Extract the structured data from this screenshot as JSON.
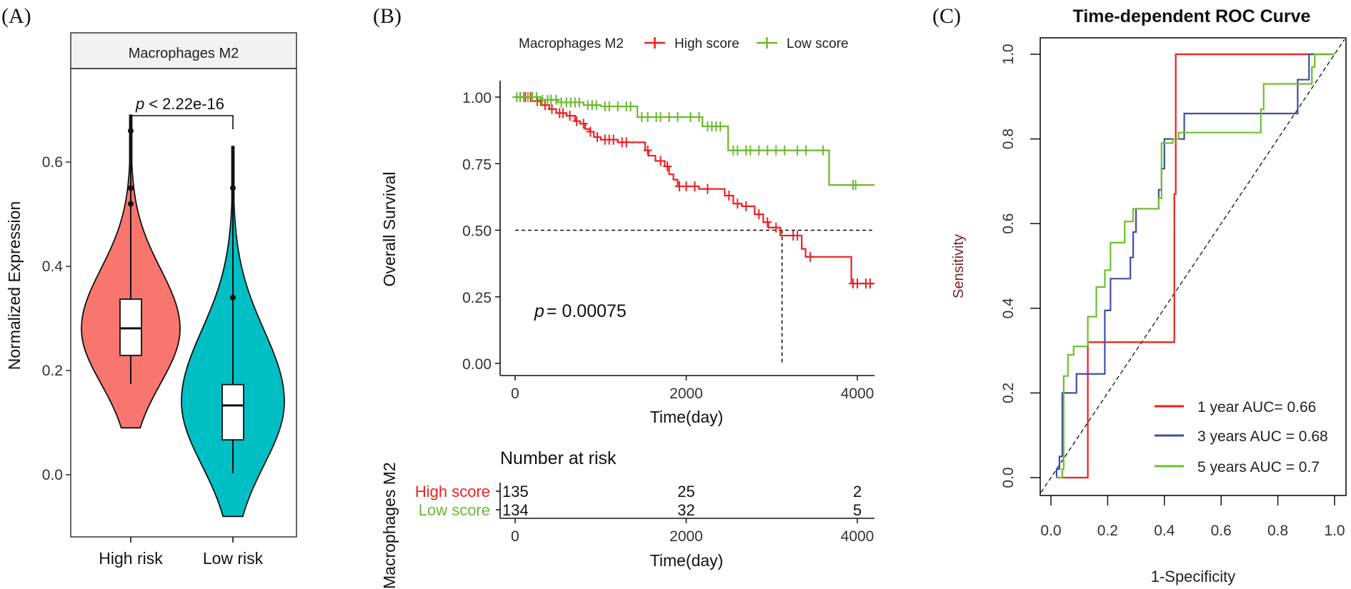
{
  "colors": {
    "violin_high": "#F8766D",
    "violin_low": "#00BFC4",
    "km_high": "#EE2020",
    "km_low": "#6CB82E",
    "roc_1y": "#F01E1E",
    "roc_3y": "#3E4FA6",
    "roc_5y": "#6CC22A",
    "strip_bg": "#F2F2F2"
  },
  "panels": {
    "a": "(A)",
    "b": "(B)",
    "c": "(C)"
  },
  "chart_data": [
    {
      "type": "violin",
      "strip_title": "Macrophages M2",
      "ylabel": "Normalized Expression",
      "xlabel": "",
      "ylim": [
        -0.1,
        0.75
      ],
      "yticks": [
        "0.0",
        "0.2",
        "0.4",
        "0.6"
      ],
      "categories": [
        "High risk",
        "Low risk"
      ],
      "annotation": {
        "p_symbol": "p",
        "p_text": "< 2.22e-16"
      },
      "groups": [
        {
          "name": "High risk",
          "min": 0.09,
          "max": 0.69,
          "mode": 0.28,
          "q1": 0.229,
          "median": 0.281,
          "q3": 0.337,
          "whisker_low": 0.174,
          "whisker_high": 0.455,
          "outliers": [
            0.52,
            0.55,
            0.66
          ]
        },
        {
          "name": "Low risk",
          "min": -0.08,
          "max": 0.63,
          "mode": 0.14,
          "q1": 0.067,
          "median": 0.133,
          "q3": 0.173,
          "whisker_low": 0.003,
          "whisker_high": 0.34,
          "outliers": [
            0.34,
            0.55
          ]
        }
      ]
    },
    {
      "type": "line",
      "subtype": "kaplan-meier",
      "legend_title": "Macrophages M2",
      "legend_placement": "top",
      "ylabel": "Overall Survival",
      "xlabel": "Time(day)",
      "xlim": [
        0,
        4200
      ],
      "ylim": [
        0,
        1
      ],
      "xticks": [
        "0",
        "2000",
        "4000"
      ],
      "yticks": [
        "0.00",
        "0.25",
        "0.50",
        "0.75",
        "1.00"
      ],
      "p_symbol": "p",
      "p_text": "= 0.00075",
      "median_line": {
        "survival": 0.5,
        "time": 3120
      },
      "series": [
        {
          "name": "High score",
          "steps": [
            [
              0,
              1
            ],
            [
              200,
              0.985
            ],
            [
              300,
              0.97
            ],
            [
              400,
              0.955
            ],
            [
              480,
              0.94
            ],
            [
              600,
              0.93
            ],
            [
              700,
              0.91
            ],
            [
              760,
              0.9
            ],
            [
              820,
              0.88
            ],
            [
              870,
              0.87
            ],
            [
              920,
              0.85
            ],
            [
              1000,
              0.84
            ],
            [
              1200,
              0.83
            ],
            [
              1520,
              0.8
            ],
            [
              1560,
              0.78
            ],
            [
              1640,
              0.76
            ],
            [
              1750,
              0.74
            ],
            [
              1800,
              0.71
            ],
            [
              1850,
              0.69
            ],
            [
              1900,
              0.665
            ],
            [
              2150,
              0.655
            ],
            [
              2450,
              0.63
            ],
            [
              2550,
              0.6
            ],
            [
              2650,
              0.59
            ],
            [
              2800,
              0.56
            ],
            [
              2900,
              0.53
            ],
            [
              2960,
              0.51
            ],
            [
              3100,
              0.48
            ],
            [
              3350,
              0.43
            ],
            [
              3395,
              0.4
            ],
            [
              3930,
              0.3
            ],
            [
              4200,
              0.3
            ]
          ],
          "censored": [
            60,
            120,
            180,
            260,
            350,
            430,
            520,
            560,
            640,
            720,
            800,
            880,
            960,
            1050,
            1100,
            1150,
            1250,
            1300,
            1550,
            1700,
            1780,
            1920,
            2000,
            2100,
            2250,
            2500,
            2600,
            2700,
            2850,
            2950,
            3050,
            3250,
            3300,
            3450,
            3950,
            4000,
            4100,
            4150
          ]
        },
        {
          "name": "Low score",
          "steps": [
            [
              0,
              1
            ],
            [
              300,
              0.99
            ],
            [
              500,
              0.98
            ],
            [
              800,
              0.97
            ],
            [
              1000,
              0.965
            ],
            [
              1430,
              0.925
            ],
            [
              2190,
              0.89
            ],
            [
              2490,
              0.8
            ],
            [
              3670,
              0.67
            ],
            [
              4200,
              0.67
            ]
          ],
          "censored": [
            20,
            60,
            100,
            150,
            200,
            250,
            320,
            380,
            420,
            480,
            540,
            600,
            650,
            700,
            750,
            850,
            900,
            950,
            1050,
            1100,
            1200,
            1300,
            1350,
            1480,
            1550,
            1650,
            1700,
            1800,
            1900,
            2050,
            2150,
            2250,
            2300,
            2350,
            2400,
            2550,
            2600,
            2700,
            2750,
            2850,
            2950,
            3050,
            3150,
            3300,
            3400,
            3600,
            3950,
            3980
          ]
        }
      ],
      "risk_table": {
        "title": "Number at risk",
        "ylabel": "Macrophages M2",
        "xlabel": "Time(day)",
        "times": [
          "0",
          "2000",
          "4000"
        ],
        "rows": [
          {
            "name": "High score",
            "values": [
              "135",
              "25",
              "2"
            ]
          },
          {
            "name": "Low score",
            "values": [
              "134",
              "32",
              "5"
            ]
          }
        ]
      }
    },
    {
      "type": "line",
      "subtype": "roc",
      "title": "Time-dependent ROC Curve",
      "xlabel": "1-Specificity",
      "ylabel": "Sensitivity",
      "xlim": [
        0,
        1
      ],
      "ylim": [
        0,
        1
      ],
      "xticks": [
        "0.0",
        "0.2",
        "0.4",
        "0.6",
        "0.8",
        "1.0"
      ],
      "yticks": [
        "0.0",
        "0.2",
        "0.4",
        "0.6",
        "0.8",
        "1.0"
      ],
      "legend_placement": "bottom-right",
      "series": [
        {
          "name": "1 year AUC= 0.66",
          "points": [
            [
              0.02,
              0
            ],
            [
              0.13,
              0
            ],
            [
              0.13,
              0.32
            ],
            [
              0.435,
              0.32
            ],
            [
              0.435,
              0.67
            ],
            [
              0.44,
              0.67
            ],
            [
              0.44,
              1.0
            ],
            [
              0.93,
              1.0
            ],
            [
              1,
              1
            ]
          ]
        },
        {
          "name": "3 years AUC = 0.68",
          "points": [
            [
              0.02,
              0
            ],
            [
              0.02,
              0.02
            ],
            [
              0.03,
              0.02
            ],
            [
              0.03,
              0.05
            ],
            [
              0.04,
              0.05
            ],
            [
              0.04,
              0.2
            ],
            [
              0.09,
              0.2
            ],
            [
              0.09,
              0.245
            ],
            [
              0.19,
              0.245
            ],
            [
              0.19,
              0.395
            ],
            [
              0.21,
              0.395
            ],
            [
              0.21,
              0.47
            ],
            [
              0.28,
              0.47
            ],
            [
              0.28,
              0.52
            ],
            [
              0.29,
              0.52
            ],
            [
              0.29,
              0.58
            ],
            [
              0.3,
              0.58
            ],
            [
              0.3,
              0.635
            ],
            [
              0.38,
              0.635
            ],
            [
              0.38,
              0.68
            ],
            [
              0.39,
              0.68
            ],
            [
              0.39,
              0.73
            ],
            [
              0.4,
              0.73
            ],
            [
              0.4,
              0.8
            ],
            [
              0.47,
              0.8
            ],
            [
              0.47,
              0.86
            ],
            [
              0.87,
              0.86
            ],
            [
              0.87,
              0.94
            ],
            [
              0.91,
              0.94
            ],
            [
              0.91,
              1.0
            ],
            [
              1,
              1
            ]
          ]
        },
        {
          "name": "5 years AUC = 0.7",
          "points": [
            [
              0.02,
              0
            ],
            [
              0.04,
              0
            ],
            [
              0.04,
              0.02
            ],
            [
              0.045,
              0.02
            ],
            [
              0.045,
              0.24
            ],
            [
              0.06,
              0.24
            ],
            [
              0.06,
              0.29
            ],
            [
              0.08,
              0.29
            ],
            [
              0.08,
              0.31
            ],
            [
              0.13,
              0.31
            ],
            [
              0.13,
              0.38
            ],
            [
              0.16,
              0.38
            ],
            [
              0.16,
              0.45
            ],
            [
              0.19,
              0.45
            ],
            [
              0.19,
              0.49
            ],
            [
              0.21,
              0.49
            ],
            [
              0.21,
              0.555
            ],
            [
              0.26,
              0.555
            ],
            [
              0.26,
              0.605
            ],
            [
              0.29,
              0.605
            ],
            [
              0.29,
              0.635
            ],
            [
              0.38,
              0.635
            ],
            [
              0.38,
              0.66
            ],
            [
              0.39,
              0.66
            ],
            [
              0.39,
              0.79
            ],
            [
              0.43,
              0.79
            ],
            [
              0.43,
              0.8
            ],
            [
              0.45,
              0.8
            ],
            [
              0.45,
              0.815
            ],
            [
              0.74,
              0.815
            ],
            [
              0.74,
              0.87
            ],
            [
              0.75,
              0.87
            ],
            [
              0.75,
              0.93
            ],
            [
              0.92,
              0.93
            ],
            [
              0.92,
              0.97
            ],
            [
              0.93,
              0.97
            ],
            [
              0.93,
              1.0
            ],
            [
              1,
              1
            ]
          ]
        }
      ],
      "reference_line": "diagonal"
    }
  ]
}
